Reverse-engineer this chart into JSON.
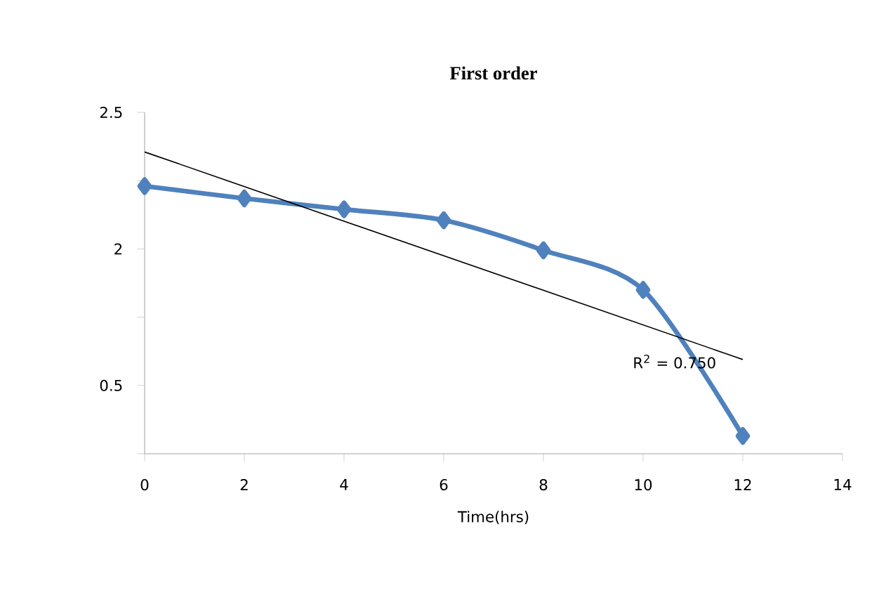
{
  "chart_data": {
    "type": "line",
    "title": "First order",
    "xlabel": "Time(hrs)",
    "xlim": [
      0,
      14
    ],
    "xticks": [
      0,
      2,
      4,
      6,
      8,
      10,
      12,
      14
    ],
    "ylim": [
      0,
      2.5
    ],
    "yticks": [
      {
        "value": 0,
        "label": null
      },
      {
        "value": 0.5,
        "label": "0.5"
      },
      {
        "value": 1,
        "label": null
      },
      {
        "value": 1.5,
        "label": "2"
      },
      {
        "value": 2,
        "label": null
      },
      {
        "value": 2.5,
        "label": "2.5"
      }
    ],
    "grid": false,
    "series": [
      {
        "color": "#4f81bd",
        "marker": "diamond",
        "x": [
          0,
          2,
          4,
          6,
          8,
          10,
          12
        ],
        "values": [
          1.96,
          1.87,
          1.79,
          1.71,
          1.49,
          1.2,
          0.13
        ]
      },
      {
        "color": "#000000",
        "marker": "none",
        "x": [
          0,
          12
        ],
        "values": [
          2.21,
          0.69
        ]
      }
    ],
    "annotations": [
      "R$^{2}$ = 0.750"
    ]
  }
}
